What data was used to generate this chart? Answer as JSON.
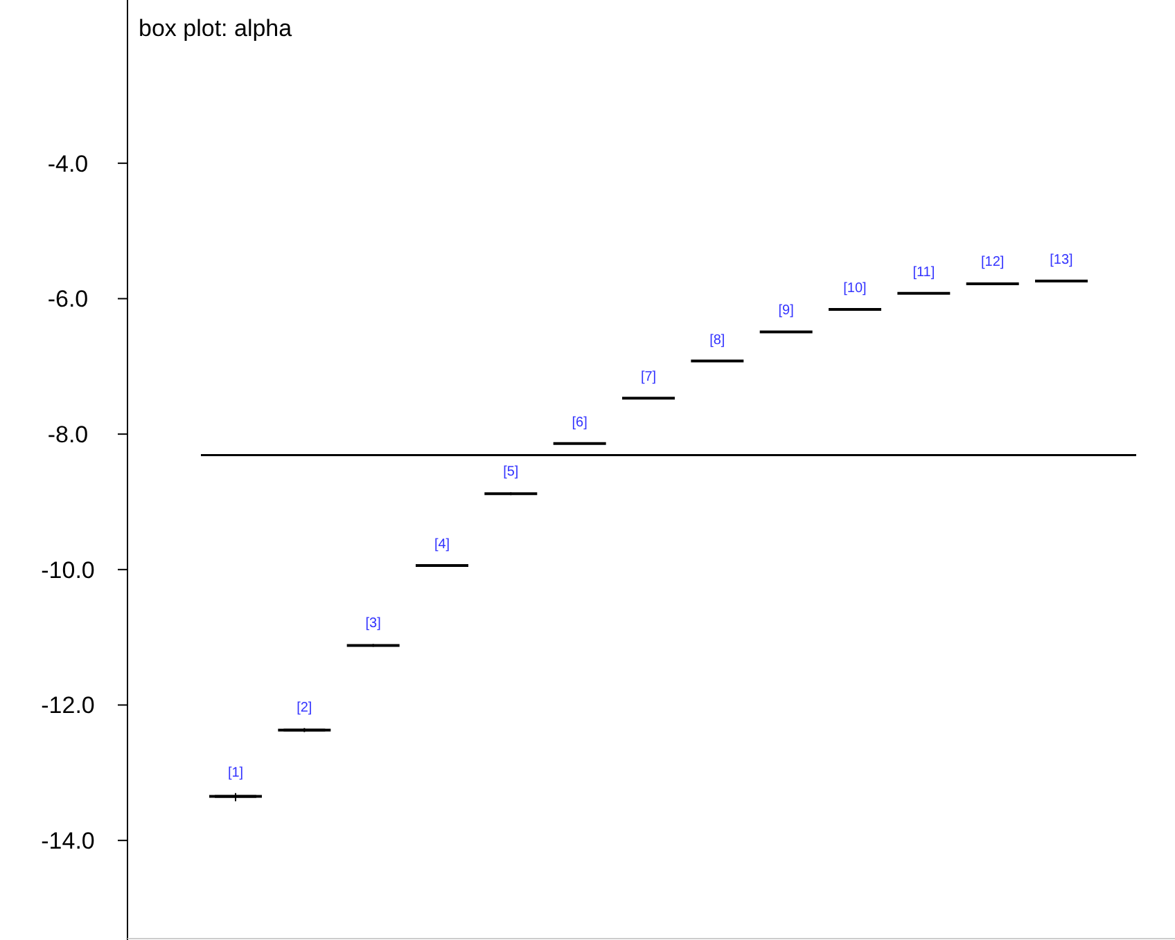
{
  "chart_data": {
    "type": "box",
    "title": "box plot: alpha",
    "categories": [
      "[1]",
      "[2]",
      "[3]",
      "[4]",
      "[5]",
      "[6]",
      "[7]",
      "[8]",
      "[9]",
      "[10]",
      "[11]",
      "[12]",
      "[13]"
    ],
    "boxes": [
      {
        "low": -13.42,
        "q1": -13.37,
        "median": -13.35,
        "q3": -13.33,
        "high": -13.3
      },
      {
        "low": -12.4,
        "q1": -12.39,
        "median": -12.37,
        "q3": -12.35,
        "high": -12.34
      },
      {
        "low": -11.14,
        "q1": -11.13,
        "median": -11.12,
        "q3": -11.11,
        "high": -11.1
      },
      {
        "low": -9.95,
        "q1": -9.95,
        "median": -9.94,
        "q3": -9.93,
        "high": -9.93
      },
      {
        "low": -8.9,
        "q1": -8.89,
        "median": -8.88,
        "q3": -8.87,
        "high": -8.86
      },
      {
        "low": -8.15,
        "q1": -8.15,
        "median": -8.14,
        "q3": -8.13,
        "high": -8.13
      },
      {
        "low": -7.48,
        "q1": -7.48,
        "median": -7.47,
        "q3": -7.46,
        "high": -7.46
      },
      {
        "low": -6.93,
        "q1": -6.93,
        "median": -6.92,
        "q3": -6.91,
        "high": -6.91
      },
      {
        "low": -6.5,
        "q1": -6.5,
        "median": -6.49,
        "q3": -6.48,
        "high": -6.48
      },
      {
        "low": -6.17,
        "q1": -6.17,
        "median": -6.16,
        "q3": -6.15,
        "high": -6.15
      },
      {
        "low": -5.93,
        "q1": -5.93,
        "median": -5.92,
        "q3": -5.91,
        "high": -5.91
      },
      {
        "low": -5.8,
        "q1": -5.79,
        "median": -5.78,
        "q3": -5.77,
        "high": -5.76
      },
      {
        "low": -5.75,
        "q1": -5.75,
        "median": -5.74,
        "q3": -5.73,
        "high": -5.73
      }
    ],
    "color": "#000000",
    "ylim": [
      -15.47,
      -1.59
    ],
    "yticks": [
      {
        "value": -4,
        "label": "-4.0"
      },
      {
        "value": -6,
        "label": "-6.0"
      },
      {
        "value": -8,
        "label": "-8.0"
      },
      {
        "value": -10,
        "label": "-10.0"
      },
      {
        "value": -12,
        "label": "-12.0"
      },
      {
        "value": -14,
        "label": "-14.0"
      }
    ],
    "ref_lines": [
      {
        "axis": "y",
        "value": -8.31,
        "color": "#000000"
      }
    ]
  }
}
